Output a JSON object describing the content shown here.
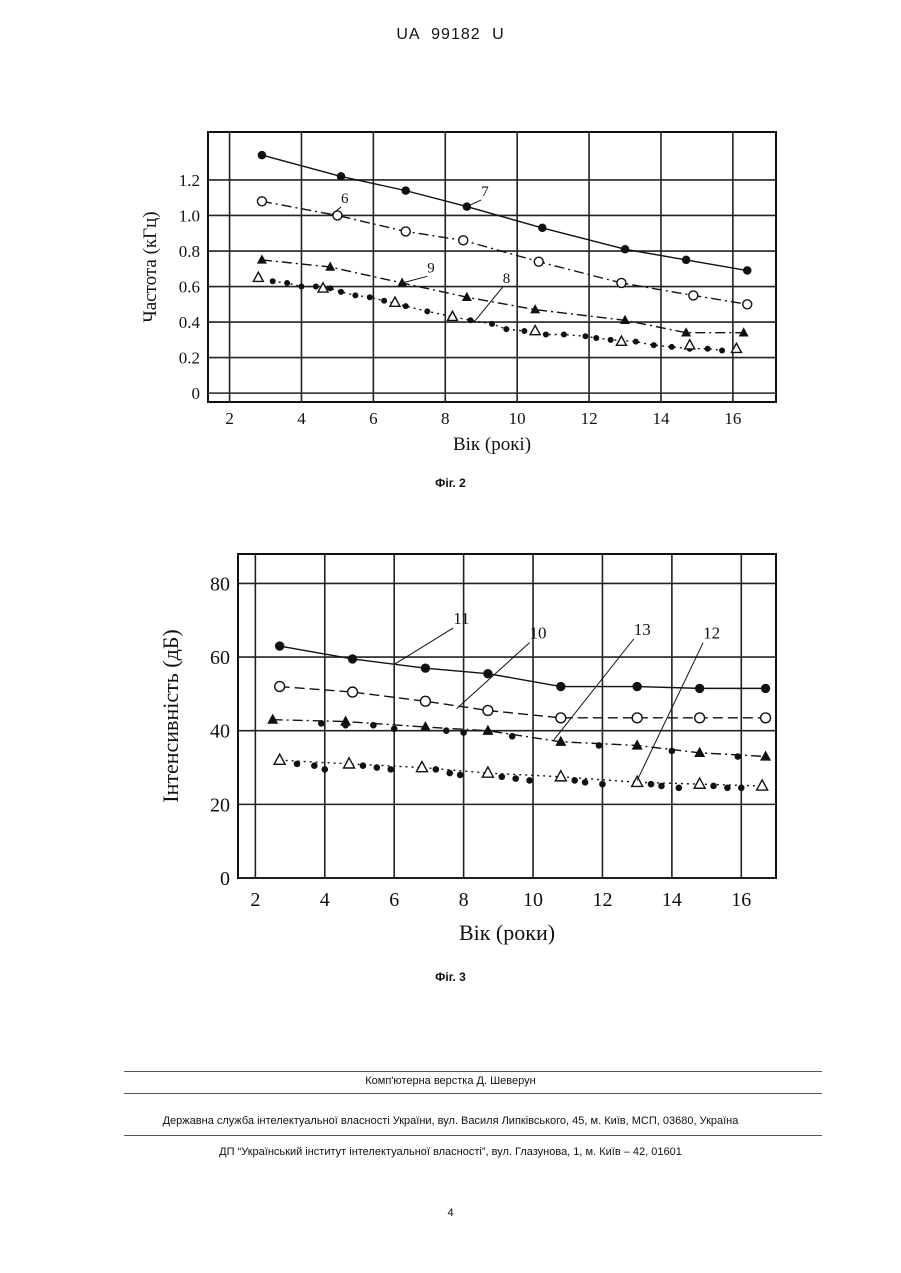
{
  "header": {
    "doc_number": "UA   99182   U"
  },
  "figures": {
    "fig2_caption": "Фіг. 2",
    "fig3_caption": "Фіг. 3"
  },
  "footer": {
    "layout_credit": "Комп'ютерна верстка Д. Шеверун",
    "agency": "Державна служба інтелектуальної власності України, вул. Василя Липківського, 45, м. Київ, МСП, 03680, Україна",
    "institute": "ДП “Український інститут інтелектуальної власності”, вул. Глазунова, 1, м. Київ – 42, 01601",
    "page_number": "4"
  },
  "chart_data": [
    {
      "type": "scatter",
      "title": "",
      "xlabel": "Вік (рокі)",
      "ylabel": "Частота (кГц)",
      "xlim": [
        1.4,
        17.2
      ],
      "ylim": [
        -0.05,
        1.47
      ],
      "xticks": [
        "2",
        "4",
        "6",
        "8",
        "10",
        "12",
        "14",
        "16"
      ],
      "yticks": [
        "0",
        "0.2",
        "0.4",
        "0.6",
        "0.8",
        "1.0",
        "1.2"
      ],
      "grid": true,
      "series": [
        {
          "name": "7",
          "marker": "filled-circle",
          "line": "solid",
          "x": [
            2.9,
            5.1,
            6.9,
            8.6,
            10.7,
            13.0,
            14.7,
            16.4
          ],
          "y": [
            1.34,
            1.22,
            1.14,
            1.05,
            0.93,
            0.81,
            0.75,
            0.69
          ]
        },
        {
          "name": "6",
          "marker": "open-circle",
          "line": "dash-dot",
          "x": [
            2.9,
            5.0,
            6.9,
            8.5,
            10.6,
            12.9,
            14.9,
            16.4
          ],
          "y": [
            1.08,
            1.0,
            0.91,
            0.86,
            0.74,
            0.62,
            0.55,
            0.5
          ]
        },
        {
          "name": "9",
          "marker": "filled-triangle",
          "line": "dash-dot",
          "x": [
            2.9,
            4.8,
            6.8,
            8.6,
            10.5,
            13.0,
            14.7,
            16.3
          ],
          "y": [
            0.75,
            0.71,
            0.62,
            0.54,
            0.47,
            0.41,
            0.34,
            0.34
          ]
        },
        {
          "name": "8",
          "marker": "small-dots",
          "line": "dotted",
          "x": [
            3.2,
            3.6,
            4.0,
            4.4,
            4.8,
            5.1,
            5.5,
            5.9,
            6.3,
            6.9,
            7.5,
            8.7,
            9.3,
            9.7,
            10.2,
            10.8,
            11.3,
            11.9,
            12.2,
            12.6,
            13.3,
            13.8,
            14.3,
            14.8,
            15.3,
            15.7
          ],
          "y": [
            0.63,
            0.62,
            0.6,
            0.6,
            0.59,
            0.57,
            0.55,
            0.54,
            0.52,
            0.49,
            0.46,
            0.41,
            0.39,
            0.36,
            0.35,
            0.33,
            0.33,
            0.32,
            0.31,
            0.3,
            0.29,
            0.27,
            0.26,
            0.25,
            0.25,
            0.24
          ]
        },
        {
          "name": "",
          "marker": "open-triangle",
          "line": "none",
          "x": [
            2.8,
            4.6,
            6.6,
            8.2,
            10.5,
            12.9,
            14.8,
            16.1
          ],
          "y": [
            0.65,
            0.59,
            0.51,
            0.43,
            0.35,
            0.29,
            0.27,
            0.25
          ]
        }
      ]
    },
    {
      "type": "scatter",
      "title": "",
      "xlabel": "Вік (роки)",
      "ylabel": "Інтенсивність (дБ)",
      "xlim": [
        1.5,
        17.0
      ],
      "ylim": [
        0,
        88
      ],
      "xticks": [
        "2",
        "4",
        "6",
        "8",
        "10",
        "12",
        "14",
        "16"
      ],
      "yticks": [
        "0",
        "20",
        "40",
        "60",
        "80"
      ],
      "grid": true,
      "series": [
        {
          "name": "11",
          "marker": "filled-circle",
          "line": "solid",
          "x": [
            2.7,
            4.8,
            6.9,
            8.7,
            10.8,
            13.0,
            14.8,
            16.7
          ],
          "y": [
            63,
            59.5,
            57,
            55.5,
            52,
            52,
            51.5,
            51.5
          ]
        },
        {
          "name": "10",
          "marker": "open-circle",
          "line": "dashed",
          "x": [
            2.7,
            4.8,
            6.9,
            8.7,
            10.8,
            13.0,
            14.8,
            16.7
          ],
          "y": [
            52,
            50.5,
            48,
            45.5,
            43.5,
            43.5,
            43.5,
            43.5
          ]
        },
        {
          "name": "13",
          "marker": "filled-triangle",
          "line": "dash-dot",
          "x": [
            2.5,
            4.6,
            6.9,
            8.7,
            10.8,
            13.0,
            14.8,
            16.7
          ],
          "y": [
            43,
            42.5,
            41,
            40,
            37,
            36,
            34,
            33
          ]
        },
        {
          "name": "12",
          "marker": "open-triangle",
          "line": "dotted",
          "x": [
            2.7,
            4.7,
            6.8,
            8.7,
            10.8,
            13.0,
            14.8,
            16.6
          ],
          "y": [
            32,
            31,
            30,
            28.5,
            27.5,
            26,
            25.5,
            25
          ]
        },
        {
          "name": "",
          "marker": "small-dots",
          "line": "none",
          "x": [
            3.2,
            3.7,
            4.0,
            5.1,
            5.5,
            5.9,
            7.2,
            7.6,
            7.9,
            9.1,
            9.5,
            9.9,
            11.2,
            11.5,
            12.0,
            13.4,
            13.7,
            14.2,
            15.2,
            15.6,
            16.0,
            3.9,
            4.6,
            5.4,
            6.0,
            7.5,
            8.0,
            9.4,
            11.9,
            14.0,
            15.9
          ],
          "y": [
            31,
            30.5,
            29.5,
            30.5,
            30,
            29.5,
            29.5,
            28.5,
            28,
            27.5,
            27,
            26.5,
            26.5,
            26,
            25.5,
            25.5,
            25,
            24.5,
            25,
            24.5,
            24.5,
            42,
            41.5,
            41.5,
            40.5,
            40,
            39.5,
            38.5,
            36,
            34.5,
            33
          ]
        }
      ]
    }
  ]
}
